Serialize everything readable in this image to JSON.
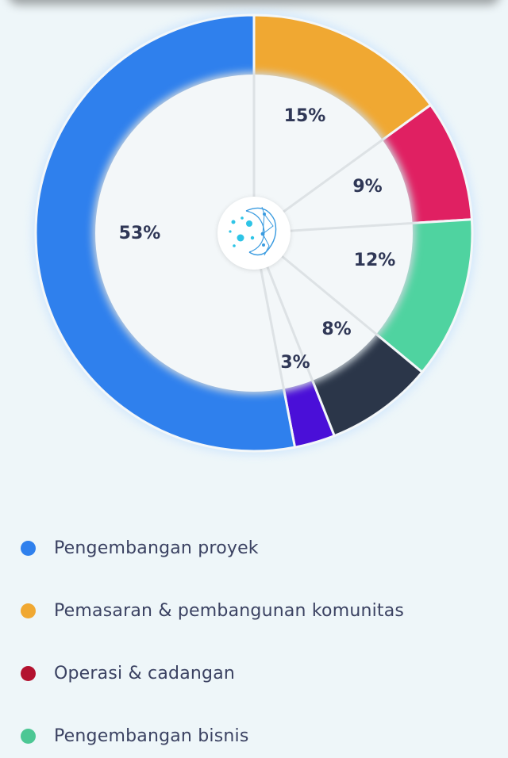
{
  "chart_data": {
    "type": "pie",
    "variant": "donut",
    "slices": [
      {
        "label": "Pemasaran & pembangunan komunitas",
        "value": 15,
        "display": "15%",
        "color": "#f0a832"
      },
      {
        "label": "Operasi & cadangan",
        "value": 9,
        "display": "9%",
        "color": "#e02062"
      },
      {
        "label": "Pengembangan bisnis",
        "value": 12,
        "display": "12%",
        "color": "#4fd3a0"
      },
      {
        "label": "",
        "value": 8,
        "display": "8%",
        "color": "#2b3649"
      },
      {
        "label": "",
        "value": 3,
        "display": "3%",
        "color": "#4a0fd8"
      },
      {
        "label": "Pengembangan proyek",
        "value": 53,
        "display": "53%",
        "color": "#2f80ed"
      }
    ],
    "legend_position": "bottom",
    "center_icon": "network-globe-logo"
  },
  "legend": [
    {
      "label": "Pengembangan proyek",
      "color": "#2f80ed"
    },
    {
      "label": "Pemasaran & pembangunan komunitas",
      "color": "#f0a832"
    },
    {
      "label": "Operasi & cadangan",
      "color": "#b3122f"
    },
    {
      "label": "Pengembangan bisnis",
      "color": "#4cc794"
    }
  ]
}
